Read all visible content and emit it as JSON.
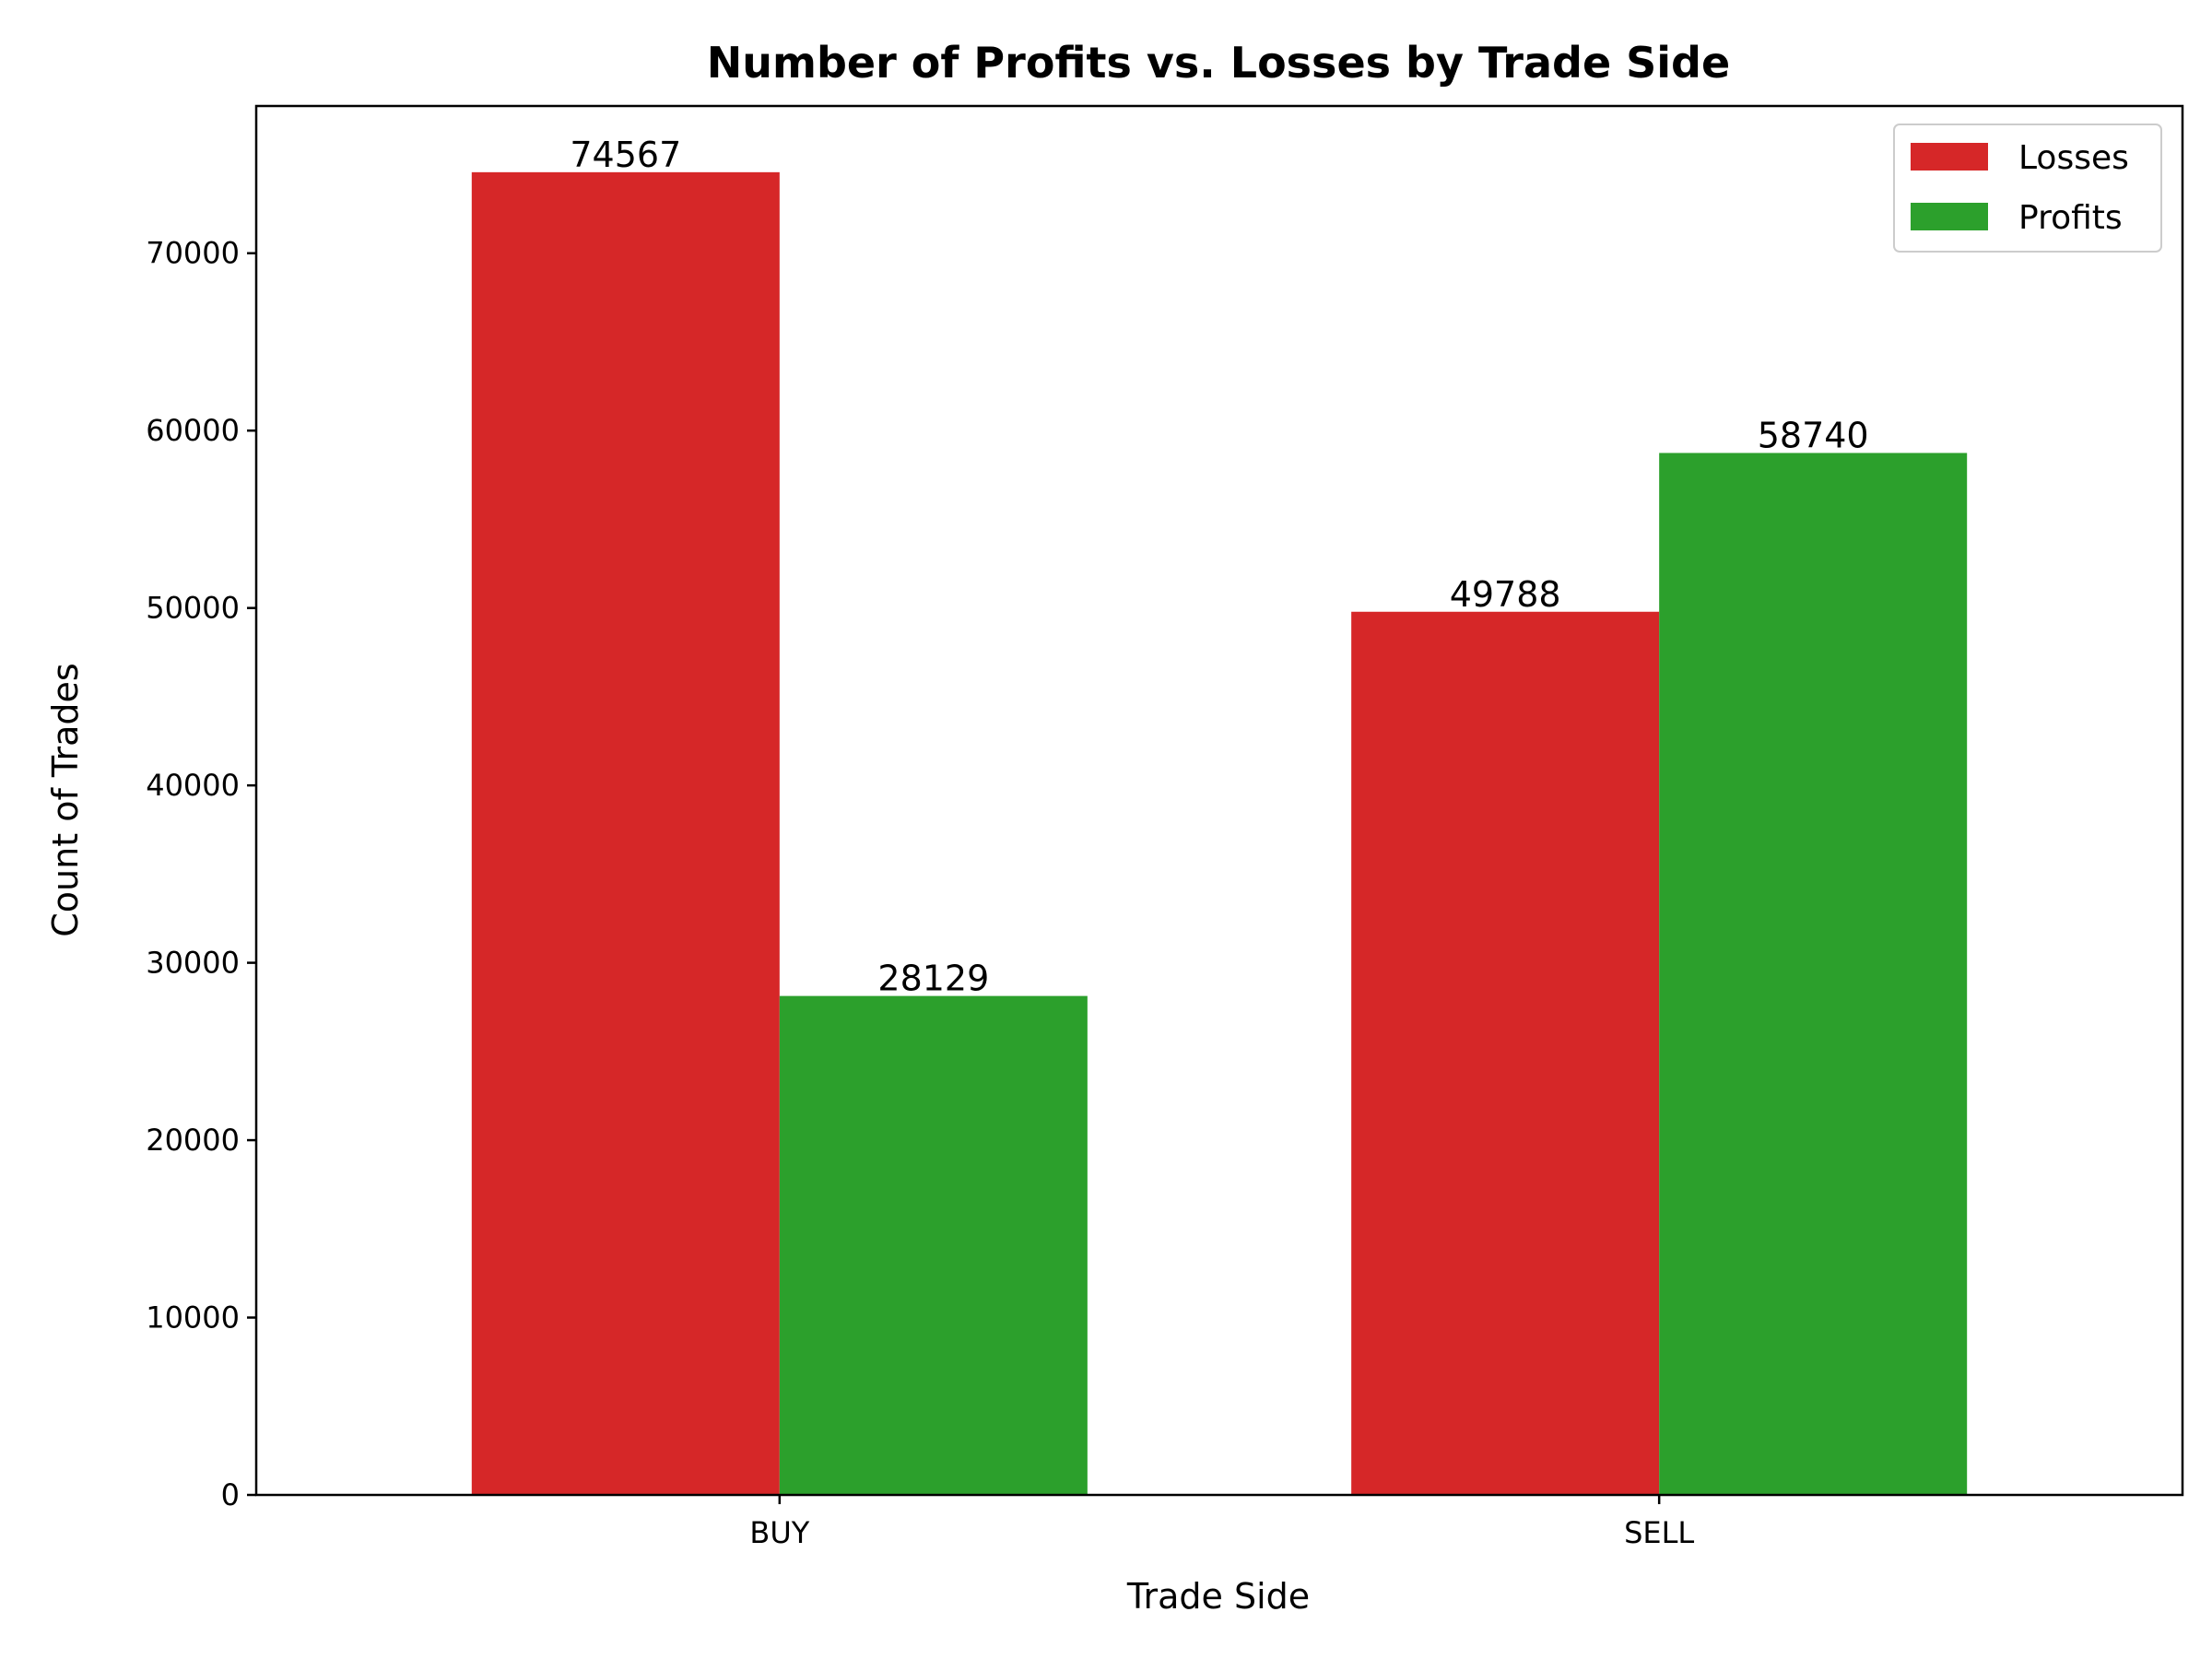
{
  "chart_data": {
    "type": "bar",
    "title": "Number of Profits vs. Losses by Trade Side",
    "xlabel": "Trade Side",
    "ylabel": "Count of Trades",
    "categories": [
      "BUY",
      "SELL"
    ],
    "series": [
      {
        "name": "Losses",
        "color": "#d62728",
        "values": [
          74567,
          49788
        ]
      },
      {
        "name": "Profits",
        "color": "#2ca02c",
        "values": [
          28129,
          58740
        ]
      }
    ],
    "ylim": [
      0,
      78300
    ],
    "yticks": [
      0,
      10000,
      20000,
      30000,
      40000,
      50000,
      60000,
      70000
    ],
    "grid": false,
    "legend_position": "top-right"
  }
}
